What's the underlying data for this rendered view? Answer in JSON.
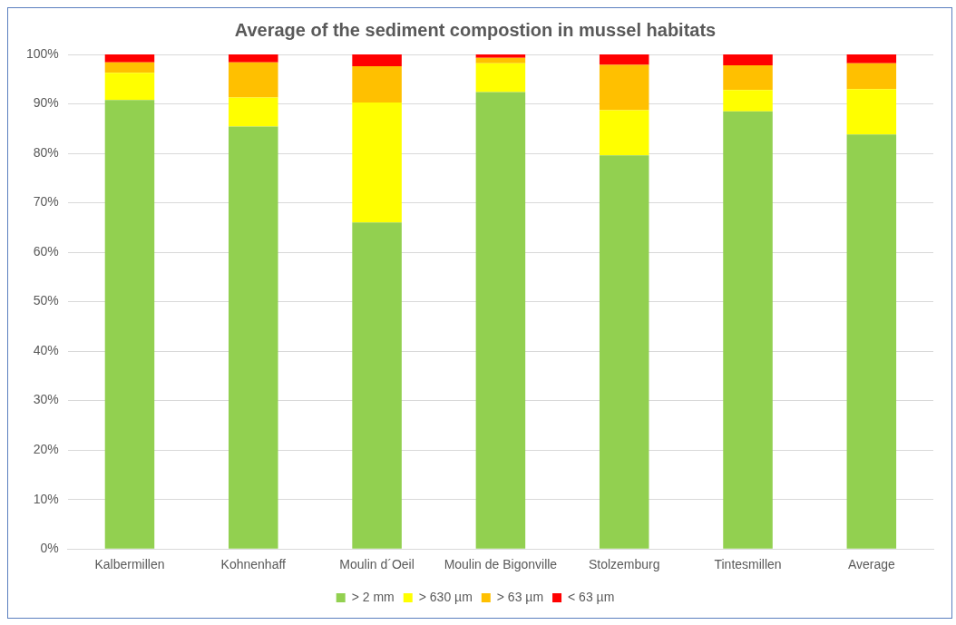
{
  "chart_data": {
    "type": "bar",
    "stacked": true,
    "title": "Average of the sediment compostion in mussel habitats",
    "categories": [
      "Kalbermillen",
      "Kohnenhaff",
      "Moulin d´Oeil",
      "Moulin de Bigonville",
      "Stolzemburg",
      "Tintesmillen",
      "Average"
    ],
    "series": [
      {
        "name": "> 2 mm",
        "color": "#92d050",
        "values": [
          90.8,
          85.4,
          66.0,
          92.4,
          79.6,
          88.5,
          83.8
        ]
      },
      {
        "name": "> 630 µm",
        "color": "#ffff00",
        "values": [
          5.5,
          5.9,
          24.3,
          5.8,
          9.1,
          4.3,
          9.2
        ]
      },
      {
        "name": "> 63 µm",
        "color": "#ffc000",
        "values": [
          2.1,
          7.1,
          7.3,
          1.1,
          9.2,
          5.0,
          5.2
        ]
      },
      {
        "name": "< 63 µm",
        "color": "#ff0000",
        "values": [
          1.6,
          1.6,
          2.4,
          0.7,
          2.1,
          2.2,
          1.8
        ]
      }
    ],
    "ylim": [
      0,
      100
    ],
    "yticks": [
      {
        "value": 0,
        "label": "0%"
      },
      {
        "value": 10,
        "label": "10%"
      },
      {
        "value": 20,
        "label": "20%"
      },
      {
        "value": 30,
        "label": "30%"
      },
      {
        "value": 40,
        "label": "40%"
      },
      {
        "value": 50,
        "label": "50%"
      },
      {
        "value": 60,
        "label": "60%"
      },
      {
        "value": 70,
        "label": "70%"
      },
      {
        "value": 80,
        "label": "80%"
      },
      {
        "value": 90,
        "label": "90%"
      },
      {
        "value": 100,
        "label": "100%"
      }
    ],
    "grid": "y",
    "legend": "bottom"
  }
}
